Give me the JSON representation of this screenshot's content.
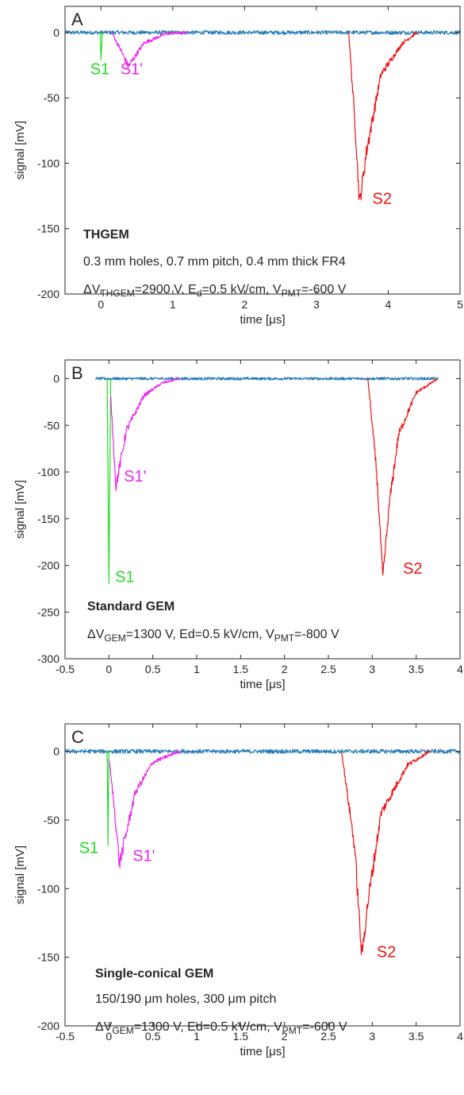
{
  "chart_data": [
    {
      "type": "line",
      "panel_label": "A",
      "xlabel": "time [μs]",
      "ylabel": "signal [mV]",
      "xlim": [
        -0.5,
        5
      ],
      "ylim": [
        -200,
        20
      ],
      "xticks": [
        0,
        1,
        2,
        3,
        4,
        5
      ],
      "xtick_labels": [
        "0",
        "1",
        "2",
        "3",
        "4",
        "5"
      ],
      "yticks": [
        0,
        -50,
        -100,
        -150,
        -200
      ],
      "ytick_labels": [
        "0",
        "-50",
        "-100",
        "-150",
        "-200"
      ],
      "grid": false,
      "annotations": [
        {
          "lines": [
            [
              "THGEM"
            ]
          ],
          "bold": true
        },
        {
          "lines": [
            [
              "0.3 mm holes, 0.7 mm pitch, 0.4 mm thick FR4"
            ]
          ]
        },
        {
          "lines": [
            [
              "ΔV",
              "THGEM",
              "=2900 V, E",
              "d",
              "=0.5 kV/cm, V",
              "PMT",
              "=-600 V"
            ]
          ]
        }
      ],
      "signal_labels": [
        {
          "text": "S1",
          "color": "#22dd22",
          "x": -0.15,
          "y": -32
        },
        {
          "text": "S1'",
          "color": "#ee22ee",
          "x": 0.27,
          "y": -32
        },
        {
          "text": "S2",
          "color": "#ee1111",
          "x": 3.78,
          "y": -131
        }
      ],
      "series": [
        {
          "name": "baseline",
          "color": "#1f77b4",
          "x": [
            -0.5,
            0,
            0.8,
            3.4,
            5
          ],
          "y": [
            0,
            0,
            0,
            0,
            0
          ]
        },
        {
          "name": "S1",
          "color": "#22dd22",
          "x": [
            -0.01,
            0.0,
            0.02
          ],
          "y": [
            0,
            -20,
            0
          ]
        },
        {
          "name": "S1'",
          "color": "#ee22ee",
          "x": [
            0.15,
            0.3,
            0.38,
            0.6,
            0.9,
            1.2
          ],
          "y": [
            0,
            -16,
            -26,
            -8,
            -1,
            0
          ]
        },
        {
          "name": "S2",
          "color": "#ee1111",
          "x": [
            3.45,
            3.55,
            3.6,
            3.7,
            3.9,
            4.2,
            4.4
          ],
          "y": [
            0,
            -80,
            -131,
            -90,
            -32,
            -8,
            0
          ]
        }
      ]
    },
    {
      "type": "line",
      "panel_label": "B",
      "xlabel": "time [μs]",
      "ylabel": "signal [mV]",
      "xlim": [
        -0.5,
        4
      ],
      "ylim": [
        -300,
        20
      ],
      "xticks": [
        -0.5,
        0,
        0.5,
        1,
        1.5,
        2,
        2.5,
        3,
        3.5,
        4
      ],
      "xtick_labels": [
        "-0.5",
        "0",
        "0.5",
        "1",
        "1.5",
        "2",
        "2.5",
        "3",
        "3.5",
        "4"
      ],
      "yticks": [
        0,
        -50,
        -100,
        -150,
        -200,
        -250,
        -300
      ],
      "ytick_labels": [
        "0",
        "-50",
        "-100",
        "-150",
        "-200",
        "-250",
        "-300"
      ],
      "grid": false,
      "annotations": [
        {
          "lines": [
            [
              "Standard GEM"
            ]
          ],
          "bold": true
        },
        {
          "lines": [
            [
              "ΔV",
              "GEM",
              "=1300 V, Ed=0.5 kV/cm, V",
              "PMT",
              "=-800 V"
            ]
          ]
        }
      ],
      "signal_labels": [
        {
          "text": "S1'",
          "color": "#ee22ee",
          "x": 0.17,
          "y": -110
        },
        {
          "text": "S1",
          "color": "#22dd22",
          "x": 0.07,
          "y": -218
        },
        {
          "text": "S2",
          "color": "#ee1111",
          "x": 3.35,
          "y": -209
        }
      ],
      "series": [
        {
          "name": "baseline",
          "color": "#1f77b4",
          "x": [
            -0.15,
            0,
            0.8,
            2.95,
            3.75
          ],
          "y": [
            0,
            0,
            0,
            0,
            0
          ]
        },
        {
          "name": "S1",
          "color": "#22dd22",
          "x": [
            -0.02,
            0.0,
            0.02
          ],
          "y": [
            0,
            -220,
            0
          ]
        },
        {
          "name": "S1'",
          "color": "#ee22ee",
          "x": [
            0.02,
            0.08,
            0.2,
            0.4,
            0.6,
            0.8
          ],
          "y": [
            -20,
            -115,
            -55,
            -18,
            -5,
            0
          ]
        },
        {
          "name": "S2",
          "color": "#ee1111",
          "x": [
            2.95,
            3.05,
            3.12,
            3.2,
            3.3,
            3.5,
            3.75
          ],
          "y": [
            0,
            -100,
            -213,
            -130,
            -60,
            -15,
            0
          ]
        }
      ]
    },
    {
      "type": "line",
      "panel_label": "C",
      "xlabel": "time [μs]",
      "ylabel": "signal [mV]",
      "xlim": [
        -0.5,
        4
      ],
      "ylim": [
        -200,
        20
      ],
      "xticks": [
        -0.5,
        0,
        0.5,
        1,
        1.5,
        2,
        2.5,
        3,
        3.5,
        4
      ],
      "xtick_labels": [
        "-0.5",
        "0",
        "0.5",
        "1",
        "1.5",
        "2",
        "2.5",
        "3",
        "3.5",
        "4"
      ],
      "yticks": [
        0,
        -50,
        -100,
        -150,
        -200
      ],
      "ytick_labels": [
        "0",
        "-50",
        "-100",
        "-150",
        "-200"
      ],
      "grid": false,
      "annotations": [
        {
          "lines": [
            [
              "Single-conical GEM"
            ]
          ],
          "bold": true
        },
        {
          "lines": [
            [
              "150/190 μm holes,  300 μm pitch"
            ]
          ]
        },
        {
          "lines": [
            [
              "ΔV",
              "GEM",
              "=1300 V, Ed=0.5 kV/cm, V",
              "PMT",
              "=-600 V"
            ]
          ]
        }
      ],
      "signal_labels": [
        {
          "text": "S1",
          "color": "#22dd22",
          "x": -0.34,
          "y": -74
        },
        {
          "text": "S1'",
          "color": "#ee22ee",
          "x": 0.27,
          "y": -80
        },
        {
          "text": "S2",
          "color": "#ee1111",
          "x": 3.05,
          "y": -150
        }
      ],
      "series": [
        {
          "name": "baseline",
          "color": "#1f77b4",
          "x": [
            -0.5,
            0,
            0.8,
            2.65,
            4
          ],
          "y": [
            0,
            0,
            0,
            0,
            0
          ]
        },
        {
          "name": "S1",
          "color": "#22dd22",
          "x": [
            -0.02,
            -0.01,
            0.0
          ],
          "y": [
            0,
            -65,
            0
          ]
        },
        {
          "name": "S1'",
          "color": "#ee22ee",
          "x": [
            0.0,
            0.06,
            0.12,
            0.3,
            0.5,
            0.8
          ],
          "y": [
            -5,
            -40,
            -82,
            -30,
            -8,
            0
          ]
        },
        {
          "name": "S2",
          "color": "#ee1111",
          "x": [
            2.65,
            2.8,
            2.88,
            2.95,
            3.1,
            3.4,
            3.65
          ],
          "y": [
            0,
            -70,
            -149,
            -110,
            -45,
            -10,
            0
          ]
        }
      ]
    }
  ]
}
